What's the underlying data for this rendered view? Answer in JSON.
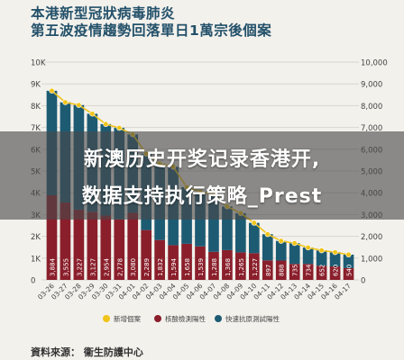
{
  "title_line1": "本港新型冠狀病毒肺炎",
  "title_line2": "第五波疫情趨勢回落單日1萬宗後個案",
  "banner_line1": "新澳历史开奖记录香港开,",
  "banner_line2": "数据支持执行策略_Prest",
  "source": "資料來源： 衞生防護中心",
  "colors": {
    "background": "#f3f1ec",
    "new_cases": "#f0c419",
    "pcr": "#8a1f2b",
    "rapid": "#1d5b73",
    "title": "#23516a"
  },
  "chart_data": {
    "type": "bar",
    "categories": [
      "03-26",
      "03-27",
      "03-28",
      "03-29",
      "03-30",
      "03-31",
      "04-01",
      "04-02",
      "04-03",
      "04-04",
      "04-05",
      "04-06",
      "04-07",
      "04-08",
      "04-09",
      "04-10",
      "04-11",
      "04-12",
      "04-13",
      "04-14",
      "04-15",
      "04-16",
      "04-17"
    ],
    "left_ticks": [
      "0",
      "1K",
      "2K",
      "3K",
      "4K",
      "5K",
      "6K",
      "7K",
      "8K",
      "9K",
      "10K"
    ],
    "right_ticks": [
      "0",
      "1,000",
      "2,000",
      "3,000",
      "4,000",
      "5,000",
      "6,000",
      "7,000",
      "8,000",
      "9,000",
      "10,000"
    ],
    "ylim": [
      0,
      10000
    ],
    "stacked": true,
    "series": [
      {
        "name": "核酸檢測陽性",
        "values": [
          3884,
          3555,
          3227,
          3127,
          2954,
          2778,
          3080,
          2289,
          1832,
          1594,
          1658,
          1539,
          1288,
          1368,
          1265,
          1227,
          897,
          888,
          735,
          734,
          652,
          620,
          540
        ]
      },
      {
        "name": "快速抗原測試陽性",
        "values": [
          4800,
          4600,
          4800,
          4500,
          4200,
          4200,
          3600,
          3500,
          3500,
          3600,
          2600,
          2500,
          2650,
          2000,
          1800,
          1390,
          1200,
          900,
          950,
          750,
          700,
          650,
          620
        ]
      },
      {
        "name": "新增個案",
        "values": [
          8684,
          8155,
          8027,
          7627,
          7154,
          6978,
          6680,
          5789,
          5332,
          5194,
          4258,
          4039,
          3938,
          3368,
          3065,
          2617,
          2097,
          1788,
          1685,
          1484,
          1352,
          1270,
          1160
        ]
      }
    ],
    "labels": [
      "3,884",
      "3,555",
      "3,227",
      "3,127",
      "2,954",
      "2,778",
      "3,080",
      "2,289",
      "1,832",
      "1,594",
      "1,658",
      "1,539",
      "1,288",
      "1,368",
      "1,265",
      "1,227",
      "897",
      "888",
      "735",
      "734",
      "652",
      "620",
      "540"
    ]
  }
}
